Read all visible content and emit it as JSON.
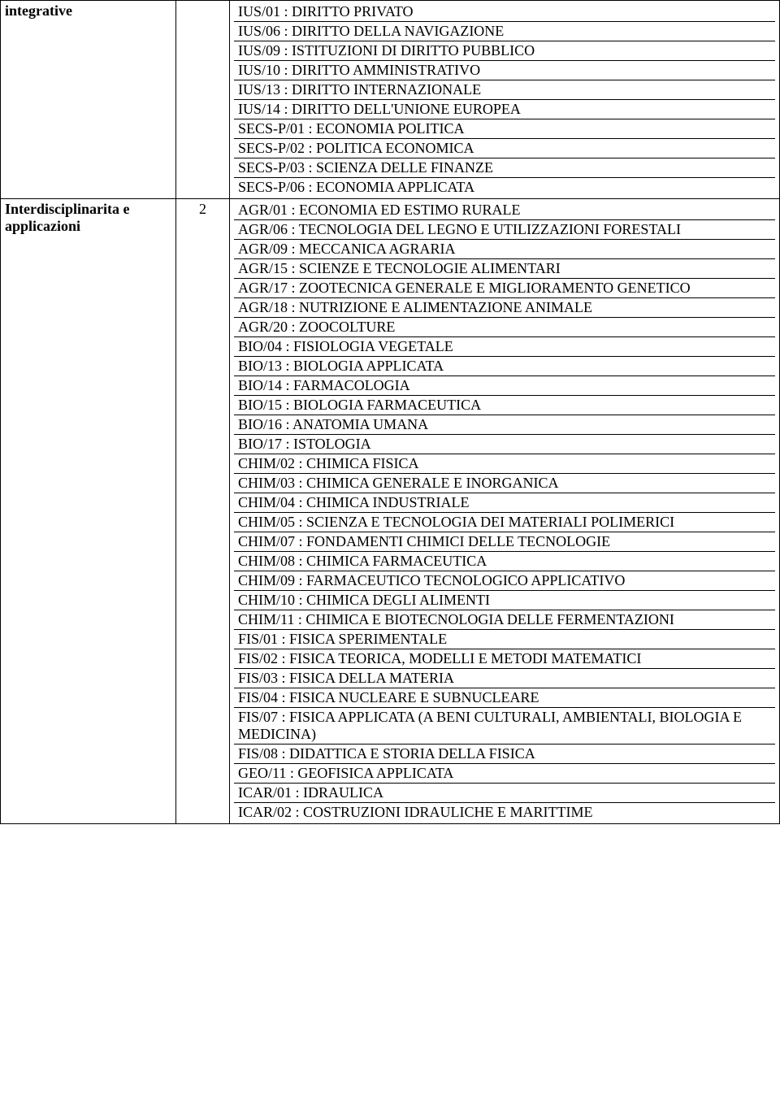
{
  "rows": [
    {
      "label": "integrative",
      "num": "",
      "items": [
        "IUS/01 : DIRITTO PRIVATO",
        "IUS/06 : DIRITTO DELLA NAVIGAZIONE",
        "IUS/09 : ISTITUZIONI DI DIRITTO PUBBLICO",
        "IUS/10 : DIRITTO AMMINISTRATIVO",
        "IUS/13 : DIRITTO INTERNAZIONALE",
        "IUS/14 : DIRITTO DELL'UNIONE EUROPEA",
        "SECS-P/01 : ECONOMIA POLITICA",
        "SECS-P/02 : POLITICA ECONOMICA",
        "SECS-P/03 : SCIENZA DELLE FINANZE",
        "SECS-P/06 : ECONOMIA APPLICATA"
      ]
    },
    {
      "label": "Interdisciplinarita e applicazioni",
      "num": "2",
      "items": [
        "AGR/01 : ECONOMIA ED ESTIMO RURALE",
        "AGR/06 : TECNOLOGIA DEL LEGNO E UTILIZZAZIONI FORESTALI",
        "AGR/09 : MECCANICA AGRARIA",
        "AGR/15 : SCIENZE E TECNOLOGIE ALIMENTARI",
        "AGR/17 : ZOOTECNICA GENERALE E MIGLIORAMENTO GENETICO",
        "AGR/18 : NUTRIZIONE E ALIMENTAZIONE ANIMALE",
        "AGR/20 : ZOOCOLTURE",
        "BIO/04 : FISIOLOGIA VEGETALE",
        "BIO/13 : BIOLOGIA APPLICATA",
        "BIO/14 : FARMACOLOGIA",
        "BIO/15 : BIOLOGIA FARMACEUTICA",
        "BIO/16 : ANATOMIA UMANA",
        "BIO/17 : ISTOLOGIA",
        "CHIM/02 : CHIMICA FISICA",
        "CHIM/03 : CHIMICA GENERALE E INORGANICA",
        "CHIM/04 : CHIMICA INDUSTRIALE",
        "CHIM/05 : SCIENZA E TECNOLOGIA DEI MATERIALI POLIMERICI",
        "CHIM/07 : FONDAMENTI CHIMICI DELLE TECNOLOGIE",
        "CHIM/08 : CHIMICA FARMACEUTICA",
        "CHIM/09 : FARMACEUTICO TECNOLOGICO APPLICATIVO",
        "CHIM/10 : CHIMICA DEGLI ALIMENTI",
        "CHIM/11 : CHIMICA E BIOTECNOLOGIA DELLE FERMENTAZIONI",
        "FIS/01 : FISICA SPERIMENTALE",
        "FIS/02 : FISICA TEORICA, MODELLI E METODI MATEMATICI",
        "FIS/03 : FISICA DELLA MATERIA",
        "FIS/04 : FISICA NUCLEARE E SUBNUCLEARE",
        "FIS/07 : FISICA APPLICATA (A BENI CULTURALI, AMBIENTALI, BIOLOGIA E MEDICINA)",
        "FIS/08 : DIDATTICA E STORIA DELLA FISICA",
        "GEO/11 : GEOFISICA APPLICATA",
        "ICAR/01 : IDRAULICA",
        "ICAR/02 : COSTRUZIONI IDRAULICHE E MARITTIME"
      ]
    }
  ]
}
